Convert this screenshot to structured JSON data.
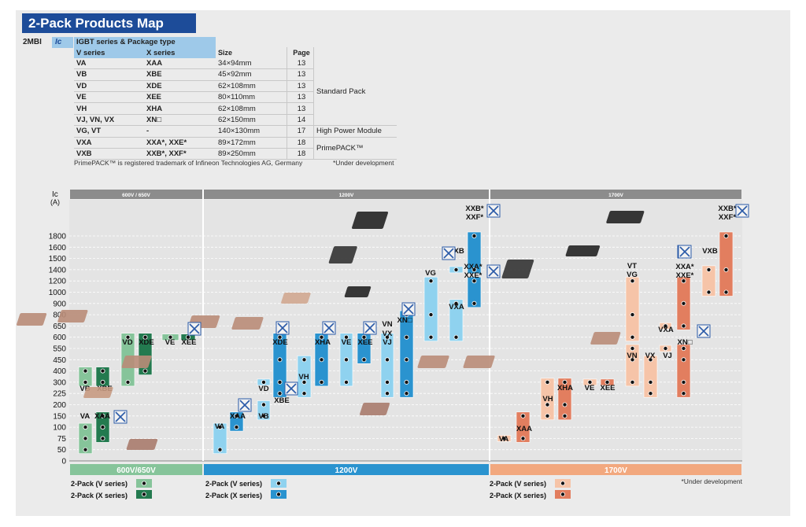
{
  "title": "2-Pack Products Map",
  "series_code": "2MBI",
  "ic_label": "Ic",
  "table": {
    "header": "IGBT series & Package type",
    "columns": [
      "V series",
      "X series",
      "Size",
      "Page"
    ],
    "rows": [
      {
        "v": "VA",
        "x": "XAA",
        "size": "34×94mm",
        "page": "13"
      },
      {
        "v": "VB",
        "x": "XBE",
        "size": "45×92mm",
        "page": "13"
      },
      {
        "v": "VD",
        "x": "XDE",
        "size": "62×108mm",
        "page": "13"
      },
      {
        "v": "VE",
        "x": "XEE",
        "size": "80×110mm",
        "page": "13"
      },
      {
        "v": "VH",
        "x": "XHA",
        "size": "62×108mm",
        "page": "13"
      },
      {
        "v": "VJ, VN, VX",
        "x": "XN□",
        "size": "62×150mm",
        "page": "14"
      },
      {
        "v": "VG, VT",
        "x": "-",
        "size": "140×130mm",
        "page": "17"
      },
      {
        "v": "VXA",
        "x": "XXA*, XXE*",
        "size": "89×172mm",
        "page": "18"
      },
      {
        "v": "VXB",
        "x": "XXB*, XXF*",
        "size": "89×250mm",
        "page": "18"
      }
    ],
    "groups": [
      "Standard Pack",
      "High Power Module",
      "PrimePACK™"
    ]
  },
  "trademark_note": "PrimePACK™ is registered trademark of Infineon Technologies AG, Germany",
  "dev_note": "*Under development",
  "chart_data": {
    "type": "bar",
    "ylabel": "Ic (A)",
    "yticks": [
      0,
      50,
      75,
      100,
      150,
      200,
      225,
      300,
      400,
      450,
      550,
      600,
      650,
      800,
      900,
      1000,
      1200,
      1400,
      1500,
      1600,
      1800
    ],
    "voltage_classes": [
      "600V / 650V",
      "1200V",
      "1700V"
    ],
    "bottom_labels": [
      "600V/650V",
      "1200V",
      "1700V"
    ],
    "colors": {
      "600v_v": "#86c49a",
      "600v_x": "#237a4f",
      "1200v_v": "#8fd2ef",
      "1200v_x": "#2a93cf",
      "1700v_v": "#f6c4a8",
      "1700v_x": "#e27e5f",
      "header": "#8c8c8c"
    },
    "legend": {
      "v": "2-Pack (V series)",
      "x": "2-Pack (X series)"
    },
    "bars": [
      {
        "class": "600V",
        "series": "V",
        "label": "VA",
        "values": [
          50,
          75,
          100
        ]
      },
      {
        "class": "600V",
        "series": "X",
        "label": "XAA",
        "values": [
          75,
          100,
          150
        ]
      },
      {
        "class": "600V",
        "series": "V",
        "label": "VB",
        "values": [
          300,
          400
        ]
      },
      {
        "class": "600V",
        "series": "X",
        "label": "XBE",
        "values": [
          300,
          400
        ]
      },
      {
        "class": "600V",
        "series": "V",
        "label": "VD",
        "values": [
          300,
          600
        ]
      },
      {
        "class": "600V",
        "series": "X",
        "label": "XDE",
        "values": [
          400,
          600
        ]
      },
      {
        "class": "600V",
        "series": "V",
        "label": "VE",
        "values": [
          600
        ]
      },
      {
        "class": "600V",
        "series": "X",
        "label": "XEE",
        "values": [
          600
        ]
      },
      {
        "class": "1200V",
        "series": "V",
        "label": "VA",
        "values": [
          50,
          100
        ]
      },
      {
        "class": "1200V",
        "series": "X",
        "label": "XAA",
        "values": [
          100,
          150
        ]
      },
      {
        "class": "1200V",
        "series": "V",
        "label": "VB",
        "values": [
          150,
          200
        ]
      },
      {
        "class": "1200V",
        "series": "V",
        "label": "VD",
        "values": [
          300
        ]
      },
      {
        "class": "1200V",
        "series": "X",
        "label": "XBE",
        "values": [
          225
        ]
      },
      {
        "class": "1200V",
        "series": "X",
        "label": "XDE",
        "values": [
          225,
          300,
          450,
          600
        ]
      },
      {
        "class": "1200V",
        "series": "V",
        "label": "VH",
        "values": [
          225,
          300,
          450
        ]
      },
      {
        "class": "1200V",
        "series": "X",
        "label": "XHA",
        "values": [
          300,
          450,
          600
        ]
      },
      {
        "class": "1200V",
        "series": "V",
        "label": "VE",
        "values": [
          300,
          450,
          600
        ]
      },
      {
        "class": "1200V",
        "series": "X",
        "label": "XEE",
        "values": [
          450,
          600
        ]
      },
      {
        "class": "1200V",
        "series": "V",
        "label": "VJ",
        "values": [
          225,
          300,
          450,
          600
        ]
      },
      {
        "class": "1200V",
        "series": "X",
        "label": "XN□",
        "values": [
          225,
          300,
          450,
          600,
          800
        ]
      },
      {
        "class": "1200V",
        "series": "V",
        "label": "VG",
        "values": [
          600,
          800,
          1200
        ]
      },
      {
        "class": "1200V",
        "series": "V",
        "label": "VXA",
        "values": [
          600,
          900
        ]
      },
      {
        "class": "1200V",
        "series": "X",
        "label": "XXA*",
        "values": [
          900,
          1200
        ]
      },
      {
        "class": "1200V",
        "series": "V",
        "label": "VXB",
        "values": [
          1400
        ]
      },
      {
        "class": "1200V",
        "series": "X",
        "label": "XXB*",
        "values": [
          1400,
          1800
        ]
      },
      {
        "class": "1700V",
        "series": "V",
        "label": "VA",
        "values": [
          75
        ]
      },
      {
        "class": "1700V",
        "series": "X",
        "label": "XAA",
        "values": [
          75,
          150
        ]
      },
      {
        "class": "1700V",
        "series": "V",
        "label": "VH",
        "values": [
          150,
          200,
          300
        ]
      },
      {
        "class": "1700V",
        "series": "X",
        "label": "XHA",
        "values": [
          150,
          200,
          300
        ]
      },
      {
        "class": "1700V",
        "series": "V",
        "label": "VE",
        "values": [
          300
        ]
      },
      {
        "class": "1700V",
        "series": "X",
        "label": "XEE",
        "values": [
          300
        ]
      },
      {
        "class": "1700V",
        "series": "V",
        "label": "VN",
        "values": [
          300,
          450,
          550
        ]
      },
      {
        "class": "1700V",
        "series": "V",
        "label": "VX",
        "values": [
          225,
          300,
          450
        ]
      },
      {
        "class": "1700V",
        "series": "V",
        "label": "VJ",
        "values": [
          550
        ]
      },
      {
        "class": "1700V",
        "series": "V",
        "label": "VG",
        "values": [
          600,
          800,
          1200
        ]
      },
      {
        "class": "1700V",
        "series": "V",
        "label": "VXA",
        "values": [
          650
        ]
      },
      {
        "class": "1700V",
        "series": "X",
        "label": "XN□",
        "values": [
          225,
          300,
          450,
          550
        ]
      },
      {
        "class": "1700V",
        "series": "X",
        "label": "XXA*",
        "values": [
          650,
          900,
          1200
        ]
      },
      {
        "class": "1700V",
        "series": "V",
        "label": "VXB",
        "values": [
          1000,
          1400
        ]
      },
      {
        "class": "1700V",
        "series": "X",
        "label": "XXB*",
        "values": [
          1000,
          1400,
          1800
        ]
      }
    ],
    "bar_labels": [
      {
        "text": "VA"
      },
      {
        "text": "XAA"
      },
      {
        "text": "VB"
      },
      {
        "text": "XBE"
      },
      {
        "text": "VD"
      },
      {
        "text": "XDE"
      },
      {
        "text": "VE"
      },
      {
        "text": "XEE"
      },
      {
        "text": "VA"
      },
      {
        "text": "XAA"
      },
      {
        "text": "VB"
      },
      {
        "text": "VD"
      },
      {
        "text": "XBE"
      },
      {
        "text": "XDE"
      },
      {
        "text": "VH"
      },
      {
        "text": "XHA"
      },
      {
        "text": "VE"
      },
      {
        "text": "XEE"
      },
      {
        "text": "VN"
      },
      {
        "text": "VX"
      },
      {
        "text": "VJ"
      },
      {
        "text": "XN□"
      },
      {
        "text": "VG"
      },
      {
        "text": "VXA"
      },
      {
        "text": "XXA*"
      },
      {
        "text": "XXE*"
      },
      {
        "text": "VXB"
      },
      {
        "text": "XXB*"
      },
      {
        "text": "XXF*"
      },
      {
        "text": "VA"
      },
      {
        "text": "XAA"
      },
      {
        "text": "VH"
      },
      {
        "text": "XHA"
      },
      {
        "text": "VE"
      },
      {
        "text": "XEE"
      },
      {
        "text": "VN"
      },
      {
        "text": "VX"
      },
      {
        "text": "VJ"
      },
      {
        "text": "VT"
      },
      {
        "text": "VG"
      },
      {
        "text": "VXA"
      },
      {
        "text": "XN□"
      },
      {
        "text": "XXA*"
      },
      {
        "text": "XXE*"
      },
      {
        "text": "VXB"
      },
      {
        "text": "XXB*"
      },
      {
        "text": "XXF*"
      }
    ]
  }
}
